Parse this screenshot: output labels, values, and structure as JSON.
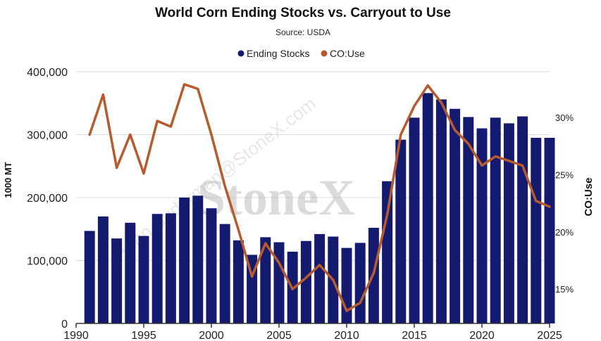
{
  "chart_data": {
    "type": "bar+line",
    "title": "World Corn Ending Stocks vs. Carryout to Use",
    "subtitle": "Source: USDA",
    "legend": [
      "Ending Stocks",
      "CO:Use"
    ],
    "ylabel_left": "1000 MT",
    "ylabel_right": "CO:Use",
    "ylim_left": [
      0,
      400000
    ],
    "ylim_right": [
      12,
      34
    ],
    "left_ticks": [
      "0",
      "100,000",
      "200,000",
      "300,000",
      "400,000"
    ],
    "right_ticks": [
      "15%",
      "20%",
      "25%",
      "30%"
    ],
    "x_ticks": [
      "1990",
      "1995",
      "2000",
      "2005",
      "2010",
      "2015",
      "2020",
      "2025"
    ],
    "x_range": [
      1990,
      2025
    ],
    "years": [
      1991,
      1992,
      1993,
      1994,
      1995,
      1996,
      1997,
      1998,
      1999,
      2000,
      2001,
      2002,
      2003,
      2004,
      2005,
      2006,
      2007,
      2008,
      2009,
      2010,
      2011,
      2012,
      2013,
      2014,
      2015,
      2016,
      2017,
      2018,
      2019,
      2020,
      2021,
      2022,
      2023,
      2024,
      2025
    ],
    "series": [
      {
        "name": "Ending Stocks",
        "type": "bar",
        "values": [
          147000,
          170000,
          135000,
          160000,
          139000,
          174000,
          175000,
          200000,
          203000,
          183000,
          158000,
          132000,
          109000,
          137000,
          129000,
          114000,
          131000,
          142000,
          138000,
          120000,
          128000,
          152000,
          226000,
          292000,
          327000,
          366000,
          356000,
          341000,
          328000,
          310000,
          327000,
          318000,
          329000,
          295000,
          295000
        ]
      },
      {
        "name": "CO:Use",
        "type": "line",
        "values": [
          28.5,
          32.0,
          25.6,
          28.5,
          25.1,
          29.7,
          29.2,
          32.9,
          32.5,
          28.5,
          24.0,
          20.2,
          16.1,
          19.0,
          17.3,
          15.0,
          16.0,
          17.1,
          15.8,
          13.1,
          13.8,
          16.4,
          21.5,
          28.5,
          31.0,
          32.8,
          31.3,
          28.9,
          27.7,
          25.8,
          26.6,
          26.2,
          25.8,
          22.7,
          22.2
        ]
      }
    ],
    "colors": {
      "bar": "#141b6e",
      "line": "#b85a2e",
      "grid": "#dddddd",
      "axis": "#333333"
    }
  },
  "watermark": {
    "brand": "StoneX",
    "email": "Arlan.Suderman@StoneX.com"
  }
}
